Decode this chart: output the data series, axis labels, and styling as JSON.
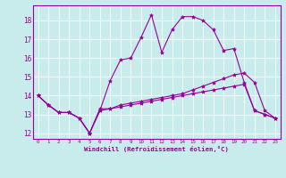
{
  "xlabel": "Windchill (Refroidissement éolien,°C)",
  "bg_color": "#c8ecec",
  "line_color": "#990099",
  "xlim": [
    -0.5,
    23.5
  ],
  "ylim": [
    11.7,
    18.8
  ],
  "yticks": [
    12,
    13,
    14,
    15,
    16,
    17,
    18
  ],
  "xticks": [
    0,
    1,
    2,
    3,
    4,
    5,
    6,
    7,
    8,
    9,
    10,
    11,
    12,
    13,
    14,
    15,
    16,
    17,
    18,
    19,
    20,
    21,
    22,
    23
  ],
  "series": [
    [
      14.0,
      13.5,
      13.1,
      13.1,
      12.8,
      12.0,
      13.2,
      14.8,
      15.9,
      16.0,
      17.1,
      18.3,
      16.3,
      17.5,
      18.2,
      18.2,
      18.0,
      17.5,
      16.4,
      16.5,
      14.7,
      13.2,
      13.0,
      12.8
    ],
    [
      14.0,
      13.5,
      13.1,
      13.1,
      12.8,
      12.0,
      13.3,
      13.3,
      13.5,
      13.6,
      13.7,
      13.8,
      13.9,
      14.0,
      14.1,
      14.3,
      14.5,
      14.7,
      14.9,
      15.1,
      15.2,
      14.7,
      13.2,
      12.8
    ],
    [
      14.0,
      13.5,
      13.1,
      13.1,
      12.8,
      12.0,
      13.2,
      13.3,
      13.4,
      13.5,
      13.6,
      13.7,
      13.8,
      13.9,
      14.0,
      14.1,
      14.2,
      14.3,
      14.4,
      14.5,
      14.6,
      13.2,
      13.0,
      12.8
    ]
  ]
}
